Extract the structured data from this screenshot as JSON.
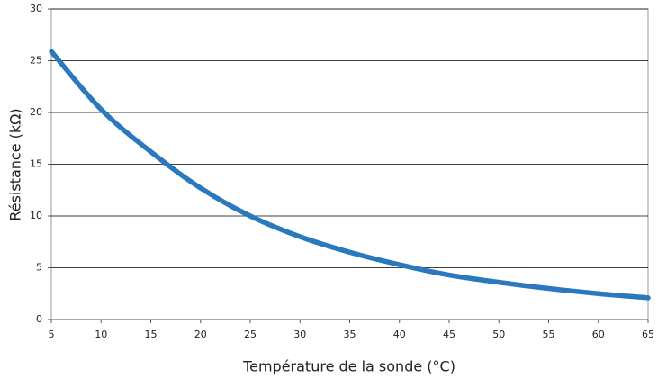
{
  "chart_data": {
    "type": "line",
    "x_label": "Température de la sonde (°C)",
    "y_label": "Résistance (kΩ)",
    "x": [
      5,
      10,
      15,
      20,
      25,
      30,
      35,
      40,
      45,
      50,
      55,
      60,
      65
    ],
    "series": [
      {
        "name": "Résistance",
        "color": "#2a78be",
        "values": [
          25.9,
          20.3,
          16.2,
          12.7,
          10.0,
          8.0,
          6.5,
          5.3,
          4.3,
          3.6,
          3.0,
          2.5,
          2.1
        ]
      }
    ],
    "xlim": [
      5,
      65
    ],
    "xticks": [
      5,
      10,
      15,
      20,
      25,
      30,
      35,
      40,
      45,
      50,
      55,
      60,
      65
    ],
    "ylim": [
      0,
      30
    ],
    "yticks": [
      0,
      5,
      10,
      15,
      20,
      25,
      30
    ],
    "grid": true
  }
}
